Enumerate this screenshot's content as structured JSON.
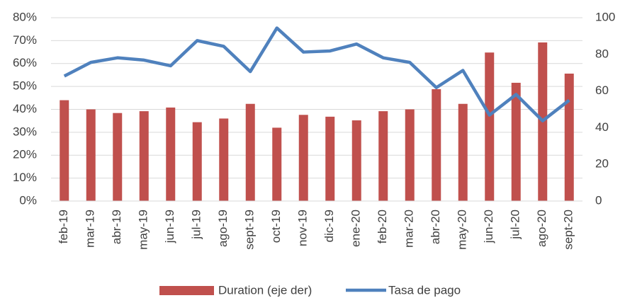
{
  "chart_data": {
    "type": "bar-line",
    "categories": [
      "feb-19",
      "mar-19",
      "abr-19",
      "may-19",
      "jun-19",
      "jul-19",
      "ago-19",
      "sept-19",
      "oct-19",
      "nov-19",
      "dic-19",
      "ene-20",
      "feb-20",
      "mar-20",
      "abr-20",
      "may-20",
      "jun-20",
      "jul-20",
      "ago-20",
      "sept-20"
    ],
    "series": [
      {
        "name": "Duration (eje der)",
        "type": "bar",
        "axis": "y2",
        "color": "#c0504d",
        "values": [
          55,
          50,
          48,
          49,
          51,
          43,
          45,
          53,
          40,
          47,
          46,
          44,
          49,
          50,
          61,
          53,
          81,
          64.5,
          86.5,
          69.5
        ]
      },
      {
        "name": "Tasa de pago",
        "type": "line",
        "axis": "y",
        "color": "#4f81bd",
        "values": [
          54.5,
          60.5,
          62.5,
          61.5,
          59,
          70,
          67.5,
          56.5,
          75.5,
          65,
          65.5,
          68.5,
          62.5,
          60.5,
          49.5,
          57,
          37.5,
          46.5,
          35,
          44
        ]
      }
    ],
    "ylim": [
      0,
      80
    ],
    "yticks": [
      {
        "value": 0,
        "label": "0%"
      },
      {
        "value": 10,
        "label": "10%"
      },
      {
        "value": 20,
        "label": "20%"
      },
      {
        "value": 30,
        "label": "30%"
      },
      {
        "value": 40,
        "label": "40%"
      },
      {
        "value": 50,
        "label": "50%"
      },
      {
        "value": 60,
        "label": "60%"
      },
      {
        "value": 70,
        "label": "70%"
      },
      {
        "value": 80,
        "label": "80%"
      }
    ],
    "y2lim": [
      0,
      100
    ],
    "y2ticks": [
      0,
      20,
      40,
      60,
      80,
      100
    ],
    "grid": true,
    "legend": "bottom"
  }
}
